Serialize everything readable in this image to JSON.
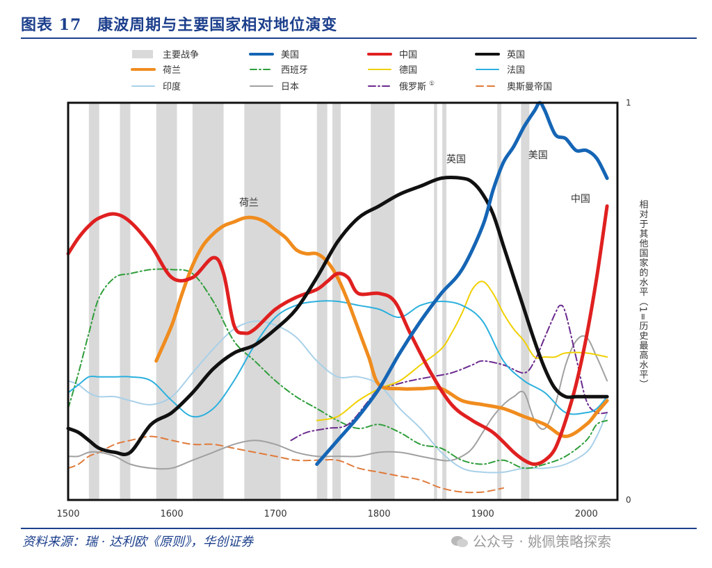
{
  "header": {
    "title": "图表 17　康波周期与主要国家相对地位演变"
  },
  "footer": {
    "source": "资料来源：瑞 · 达利欧《原则》，华创证券",
    "watermark": "公众号 · 姚佩策略探索"
  },
  "chart_data": {
    "type": "line",
    "title": "",
    "xlabel": "",
    "ylabel": "相对于其他国家的水平（1=历史最高水平）",
    "xlim": [
      1500,
      2030
    ],
    "ylim": [
      0,
      1
    ],
    "xticks": [
      1500,
      1600,
      1700,
      1800,
      1900,
      2000
    ],
    "yticks": [
      0,
      1
    ],
    "grid": false,
    "legend_position": "top",
    "war_legend_label": "主要战争",
    "war_color": "#d9d9d9",
    "war_periods": [
      [
        1520,
        1530
      ],
      [
        1550,
        1560
      ],
      [
        1585,
        1605
      ],
      [
        1620,
        1650
      ],
      [
        1670,
        1705
      ],
      [
        1740,
        1750
      ],
      [
        1755,
        1763
      ],
      [
        1792,
        1815
      ],
      [
        1853,
        1856
      ],
      [
        1861,
        1865
      ],
      [
        1914,
        1918
      ],
      [
        1937,
        1945
      ]
    ],
    "series": [
      {
        "name": "美国",
        "color": "#1565b5",
        "width": 5,
        "dash": "",
        "x": [
          1740,
          1760,
          1780,
          1800,
          1820,
          1840,
          1860,
          1880,
          1900,
          1910,
          1920,
          1930,
          1940,
          1950,
          1955,
          1960,
          1970,
          1980,
          1990,
          2000,
          2010,
          2020
        ],
        "y": [
          0.09,
          0.15,
          0.21,
          0.28,
          0.37,
          0.45,
          0.52,
          0.58,
          0.69,
          0.78,
          0.85,
          0.89,
          0.94,
          0.98,
          1.0,
          0.98,
          0.92,
          0.91,
          0.88,
          0.88,
          0.86,
          0.81
        ],
        "label": "美国",
        "label_x": 1944,
        "label_y": 0.86
      },
      {
        "name": "中国",
        "color": "#e02020",
        "width": 5,
        "dash": "",
        "x": [
          1500,
          1510,
          1520,
          1530,
          1545,
          1560,
          1580,
          1600,
          1620,
          1640,
          1650,
          1660,
          1670,
          1680,
          1700,
          1720,
          1740,
          1750,
          1760,
          1770,
          1780,
          1800,
          1815,
          1830,
          1850,
          1870,
          1890,
          1910,
          1930,
          1940,
          1950,
          1960,
          1970,
          1980,
          1990,
          2000,
          2010,
          2020
        ],
        "y": [
          0.62,
          0.66,
          0.69,
          0.71,
          0.72,
          0.7,
          0.64,
          0.56,
          0.56,
          0.61,
          0.57,
          0.44,
          0.42,
          0.43,
          0.48,
          0.51,
          0.53,
          0.55,
          0.57,
          0.56,
          0.52,
          0.52,
          0.5,
          0.42,
          0.32,
          0.24,
          0.2,
          0.17,
          0.12,
          0.1,
          0.09,
          0.1,
          0.13,
          0.2,
          0.29,
          0.41,
          0.56,
          0.74
        ],
        "label": "中国",
        "label_x": 1985,
        "label_y": 0.75
      },
      {
        "name": "英国",
        "color": "#111111",
        "width": 5,
        "dash": "",
        "x": [
          1500,
          1510,
          1520,
          1530,
          1545,
          1560,
          1580,
          1600,
          1620,
          1640,
          1660,
          1680,
          1700,
          1720,
          1740,
          1760,
          1780,
          1800,
          1820,
          1840,
          1860,
          1880,
          1890,
          1900,
          1910,
          1920,
          1930,
          1940,
          1950,
          1960,
          1970,
          1980,
          1990,
          2000,
          2010,
          2020
        ],
        "y": [
          0.18,
          0.17,
          0.15,
          0.13,
          0.12,
          0.12,
          0.19,
          0.22,
          0.27,
          0.33,
          0.37,
          0.39,
          0.43,
          0.48,
          0.56,
          0.65,
          0.71,
          0.74,
          0.77,
          0.79,
          0.81,
          0.81,
          0.8,
          0.77,
          0.72,
          0.64,
          0.56,
          0.48,
          0.4,
          0.33,
          0.28,
          0.26,
          0.26,
          0.26,
          0.26,
          0.26
        ],
        "label": "英国",
        "label_x": 1865,
        "label_y": 0.85
      },
      {
        "name": "荷兰",
        "color": "#f08c1e",
        "width": 5,
        "dash": "",
        "x": [
          1585,
          1600,
          1610,
          1620,
          1630,
          1640,
          1650,
          1660,
          1670,
          1680,
          1690,
          1700,
          1710,
          1720,
          1730,
          1740,
          1750,
          1760,
          1770,
          1780,
          1790,
          1800,
          1820,
          1840,
          1860,
          1880,
          1900,
          1920,
          1940,
          1960,
          1980,
          2000,
          2010,
          2020
        ],
        "y": [
          0.35,
          0.44,
          0.52,
          0.59,
          0.64,
          0.67,
          0.69,
          0.7,
          0.71,
          0.71,
          0.7,
          0.68,
          0.66,
          0.63,
          0.62,
          0.62,
          0.6,
          0.56,
          0.5,
          0.43,
          0.36,
          0.29,
          0.28,
          0.28,
          0.28,
          0.25,
          0.24,
          0.23,
          0.21,
          0.19,
          0.16,
          0.19,
          0.22,
          0.25
        ],
        "label": "荷兰",
        "label_x": 1665,
        "label_y": 0.74
      },
      {
        "name": "西班牙",
        "color": "#2e9e3a",
        "width": 2,
        "dash": "9,4,2,4",
        "x": [
          1500,
          1510,
          1520,
          1530,
          1545,
          1560,
          1580,
          1600,
          1620,
          1640,
          1660,
          1680,
          1700,
          1720,
          1740,
          1760,
          1780,
          1800,
          1820,
          1840,
          1860,
          1880,
          1900,
          1920,
          1940,
          1960,
          1980,
          2000,
          2010,
          2020
        ],
        "y": [
          0.23,
          0.32,
          0.42,
          0.51,
          0.56,
          0.57,
          0.58,
          0.58,
          0.57,
          0.5,
          0.4,
          0.35,
          0.3,
          0.26,
          0.23,
          0.2,
          0.18,
          0.19,
          0.17,
          0.14,
          0.13,
          0.1,
          0.09,
          0.1,
          0.08,
          0.09,
          0.11,
          0.15,
          0.19,
          0.2
        ]
      },
      {
        "name": "德国",
        "color": "#f0d000",
        "width": 2,
        "dash": "",
        "x": [
          1740,
          1760,
          1780,
          1800,
          1820,
          1840,
          1860,
          1870,
          1880,
          1890,
          1900,
          1910,
          1920,
          1930,
          1940,
          1950,
          1960,
          1970,
          1980,
          2000,
          2020
        ],
        "y": [
          0.2,
          0.21,
          0.25,
          0.28,
          0.3,
          0.34,
          0.38,
          0.42,
          0.47,
          0.53,
          0.55,
          0.52,
          0.47,
          0.43,
          0.4,
          0.36,
          0.36,
          0.36,
          0.37,
          0.37,
          0.36
        ]
      },
      {
        "name": "法国",
        "color": "#2bb0de",
        "width": 2,
        "dash": "",
        "x": [
          1500,
          1510,
          1520,
          1530,
          1545,
          1560,
          1580,
          1600,
          1620,
          1640,
          1660,
          1680,
          1700,
          1720,
          1740,
          1760,
          1780,
          1800,
          1820,
          1840,
          1860,
          1880,
          1900,
          1920,
          1940,
          1960,
          1980,
          2000,
          2010,
          2020
        ],
        "y": [
          0.27,
          0.29,
          0.31,
          0.31,
          0.31,
          0.31,
          0.3,
          0.25,
          0.21,
          0.23,
          0.3,
          0.39,
          0.46,
          0.49,
          0.5,
          0.5,
          0.49,
          0.48,
          0.46,
          0.49,
          0.5,
          0.49,
          0.45,
          0.35,
          0.3,
          0.27,
          0.22,
          0.22,
          0.23,
          0.26
        ]
      },
      {
        "name": "印度",
        "color": "#a8d0e8",
        "width": 2,
        "dash": "",
        "x": [
          1500,
          1510,
          1520,
          1530,
          1545,
          1560,
          1580,
          1600,
          1620,
          1640,
          1660,
          1680,
          1700,
          1720,
          1740,
          1760,
          1780,
          1800,
          1820,
          1840,
          1860,
          1880,
          1900,
          1920,
          1940,
          1960,
          1980,
          2000,
          2010,
          2020
        ],
        "y": [
          0.3,
          0.29,
          0.27,
          0.26,
          0.26,
          0.25,
          0.24,
          0.26,
          0.32,
          0.38,
          0.43,
          0.45,
          0.44,
          0.41,
          0.35,
          0.31,
          0.31,
          0.29,
          0.23,
          0.18,
          0.12,
          0.08,
          0.07,
          0.07,
          0.08,
          0.08,
          0.09,
          0.12,
          0.16,
          0.22
        ]
      },
      {
        "name": "日本",
        "color": "#a0a0a0",
        "width": 2,
        "dash": "",
        "x": [
          1500,
          1510,
          1520,
          1530,
          1545,
          1560,
          1580,
          1600,
          1620,
          1640,
          1660,
          1680,
          1700,
          1720,
          1740,
          1760,
          1780,
          1800,
          1820,
          1840,
          1860,
          1870,
          1880,
          1890,
          1900,
          1910,
          1920,
          1930,
          1940,
          1950,
          1960,
          1970,
          1980,
          1990,
          2000,
          2010,
          2020
        ],
        "y": [
          0.11,
          0.11,
          0.12,
          0.12,
          0.11,
          0.09,
          0.08,
          0.08,
          0.1,
          0.12,
          0.14,
          0.15,
          0.14,
          0.12,
          0.11,
          0.11,
          0.11,
          0.12,
          0.12,
          0.11,
          0.1,
          0.1,
          0.11,
          0.13,
          0.17,
          0.21,
          0.24,
          0.26,
          0.27,
          0.2,
          0.18,
          0.24,
          0.34,
          0.4,
          0.41,
          0.36,
          0.3
        ]
      },
      {
        "name": "俄罗斯",
        "color": "#6a2a8e",
        "width": 2,
        "dash": "10,4,2,4",
        "x": [
          1715,
          1730,
          1750,
          1770,
          1790,
          1800,
          1815,
          1830,
          1850,
          1870,
          1890,
          1900,
          1920,
          1940,
          1950,
          1960,
          1970,
          1975,
          1980,
          1990,
          2000,
          2010,
          2020
        ],
        "y": [
          0.15,
          0.17,
          0.18,
          0.19,
          0.25,
          0.28,
          0.29,
          0.3,
          0.31,
          0.32,
          0.34,
          0.35,
          0.34,
          0.32,
          0.35,
          0.41,
          0.47,
          0.49,
          0.47,
          0.36,
          0.25,
          0.22,
          0.22
        ]
      },
      {
        "name": "奥斯曼帝国",
        "color": "#e07a3a",
        "width": 2,
        "dash": "10,6",
        "x": [
          1500,
          1510,
          1520,
          1530,
          1545,
          1560,
          1580,
          1600,
          1620,
          1640,
          1660,
          1680,
          1700,
          1720,
          1740,
          1760,
          1780,
          1800,
          1820,
          1840,
          1860,
          1880,
          1900,
          1920
        ],
        "y": [
          0.08,
          0.09,
          0.11,
          0.12,
          0.14,
          0.15,
          0.16,
          0.15,
          0.14,
          0.14,
          0.13,
          0.12,
          0.11,
          0.1,
          0.1,
          0.1,
          0.08,
          0.07,
          0.06,
          0.05,
          0.03,
          0.02,
          0.02,
          0.03
        ]
      }
    ],
    "legend": [
      {
        "name": "主要战争",
        "type": "war"
      },
      {
        "name": "美国",
        "ref": 0
      },
      {
        "name": "中国",
        "ref": 1
      },
      {
        "name": "英国",
        "ref": 2
      },
      {
        "name": "荷兰",
        "ref": 3
      },
      {
        "name": "西班牙",
        "ref": 4
      },
      {
        "name": "德国",
        "ref": 5
      },
      {
        "name": "法国",
        "ref": 6
      },
      {
        "name": "印度",
        "ref": 7
      },
      {
        "name": "日本",
        "ref": 8
      },
      {
        "name": "俄罗斯",
        "ref": 9,
        "sup": "①"
      },
      {
        "name": "奥斯曼帝国",
        "ref": 10
      }
    ]
  }
}
